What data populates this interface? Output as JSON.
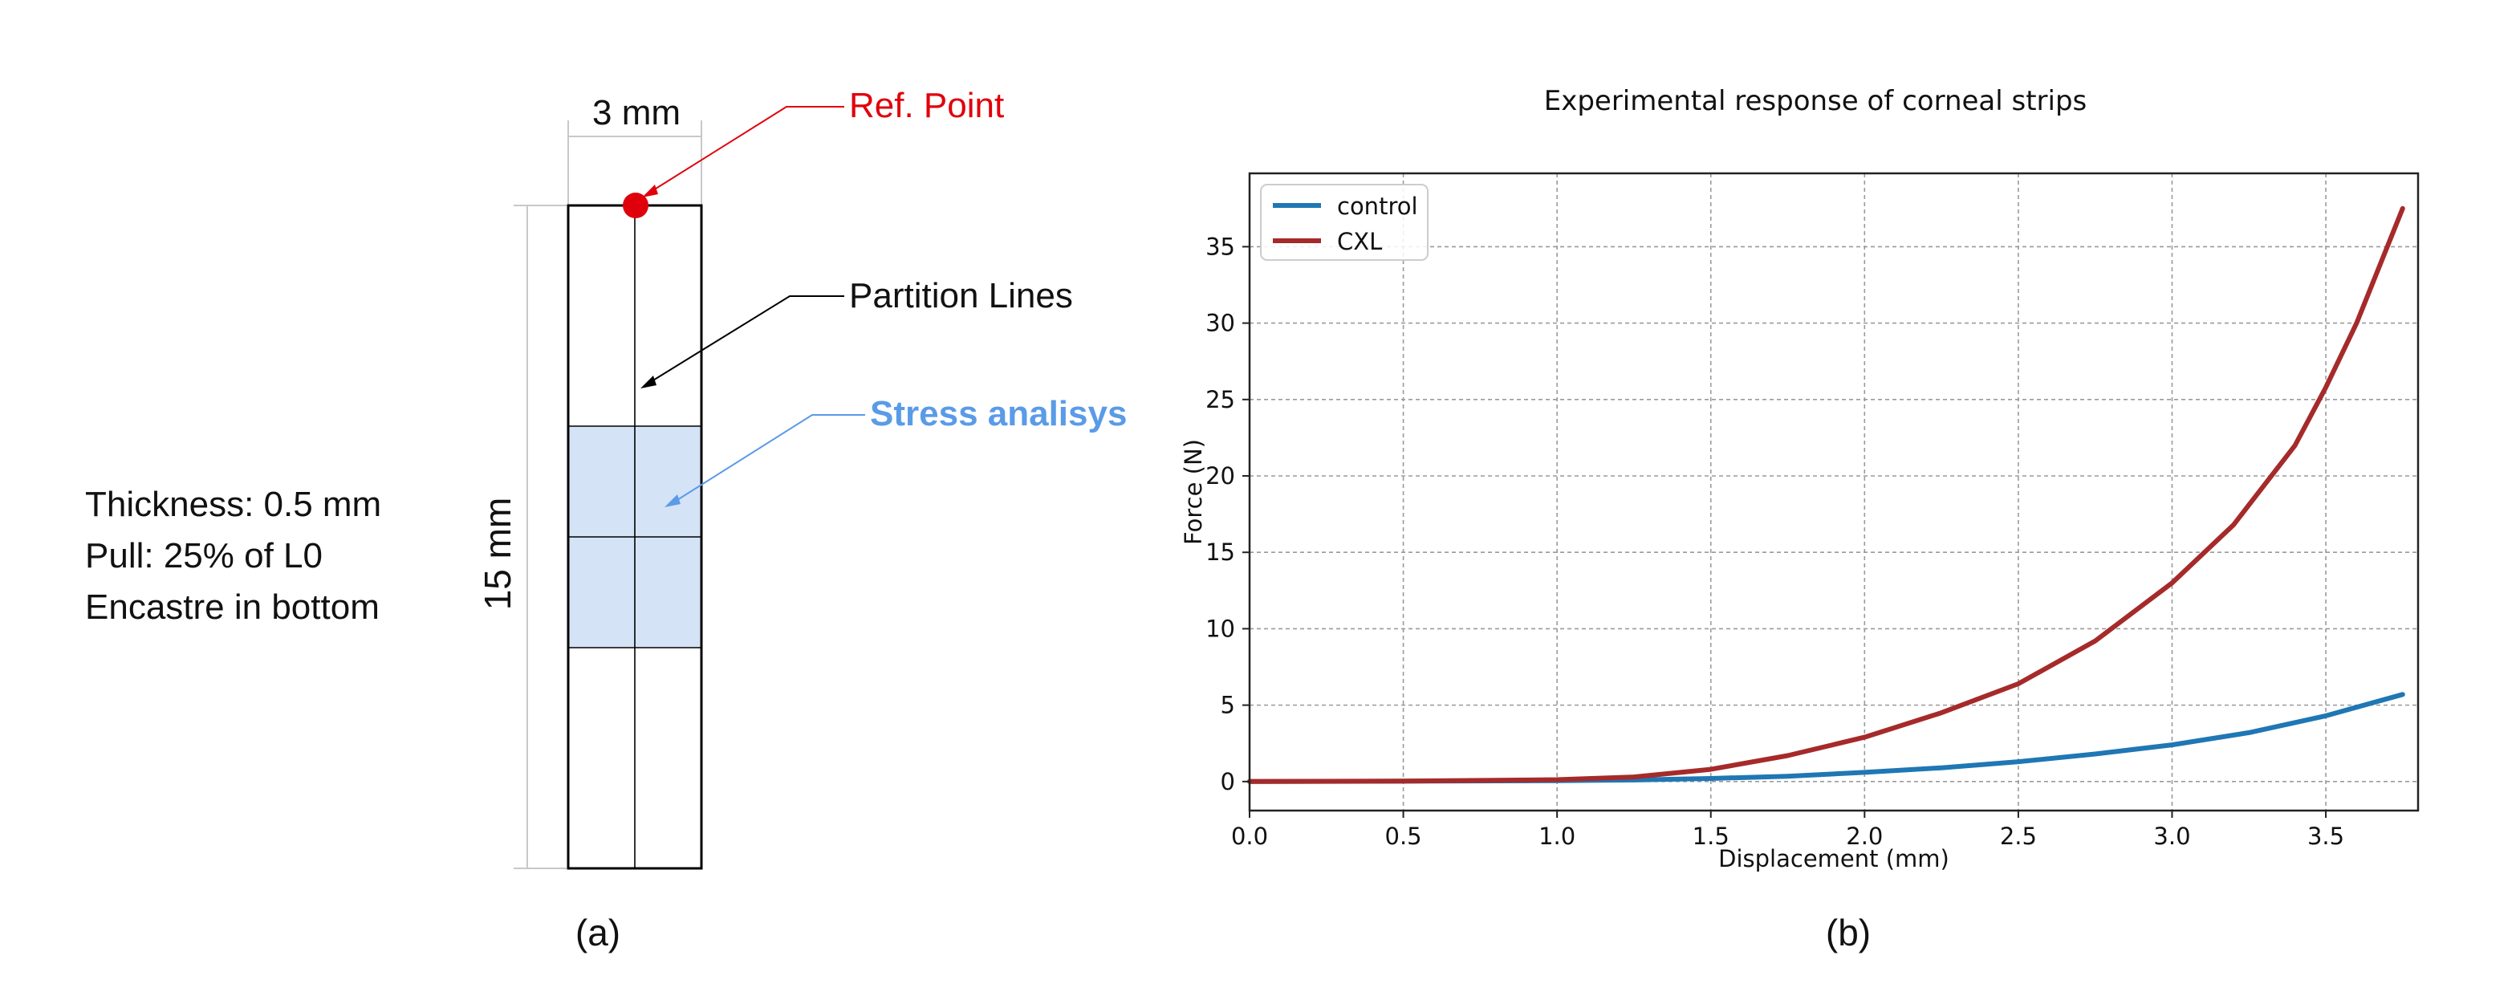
{
  "panel_a": {
    "caption": "(a)",
    "width_label": "3 mm",
    "height_label": "15 mm",
    "ref_point_label": "Ref. Point",
    "partition_label": "Partition Lines",
    "stress_label": "Stress analisys",
    "properties": [
      "Thickness: 0.5 mm",
      "Pull: 25% of L0",
      "Encastre in bottom"
    ],
    "colors": {
      "ref_point": "#e0000b",
      "stress_region": "#d4e3f5",
      "stress_text": "#5a9be8",
      "outline": "#000000"
    }
  },
  "panel_b": {
    "caption": "(b)"
  },
  "chart_data": {
    "type": "line",
    "title": "Experimental response of corneal strips",
    "xlabel": "Displacement (mm)",
    "ylabel": "Force (N)",
    "xlim": [
      0.0,
      3.8
    ],
    "ylim": [
      -1.9,
      39.8
    ],
    "xticks": [
      0.0,
      0.5,
      1.0,
      1.5,
      2.0,
      2.5,
      3.0,
      3.5
    ],
    "yticks": [
      0,
      5,
      10,
      15,
      20,
      25,
      30,
      35
    ],
    "grid": true,
    "legend": "top-left",
    "series": [
      {
        "name": "control",
        "color": "#1f77b4",
        "x": [
          0.0,
          0.5,
          1.0,
          1.25,
          1.5,
          1.75,
          2.0,
          2.25,
          2.5,
          2.75,
          3.0,
          3.25,
          3.5,
          3.75
        ],
        "y": [
          0.0,
          0.02,
          0.06,
          0.1,
          0.2,
          0.35,
          0.6,
          0.9,
          1.3,
          1.8,
          2.4,
          3.2,
          4.3,
          5.7
        ]
      },
      {
        "name": "CXL",
        "color": "#a62a2a",
        "x": [
          0.0,
          0.5,
          1.0,
          1.25,
          1.5,
          1.75,
          2.0,
          2.25,
          2.5,
          2.75,
          3.0,
          3.2,
          3.4,
          3.5,
          3.6,
          3.75
        ],
        "y": [
          0.0,
          0.03,
          0.12,
          0.3,
          0.8,
          1.7,
          2.9,
          4.5,
          6.4,
          9.2,
          13.0,
          16.8,
          22.0,
          25.8,
          30.0,
          37.5
        ]
      }
    ]
  }
}
